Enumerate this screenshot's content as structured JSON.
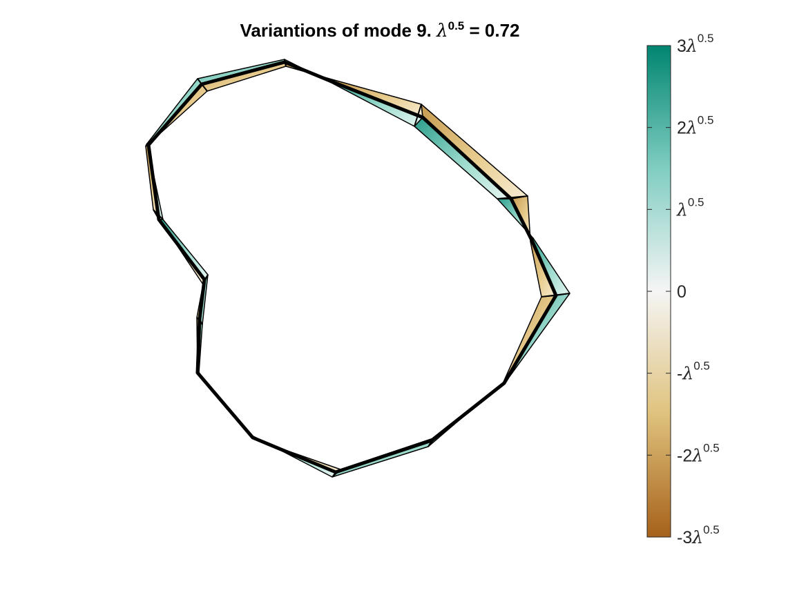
{
  "chart_data": {
    "type": "shape-variation",
    "title": {
      "prefix": "Variantions of mode 9. ",
      "lambda_symbol": "λ",
      "exponent": "0.5",
      "suffix": " = 0.72"
    },
    "mode": 9,
    "sqrt_lambda": 0.72,
    "colorbar": {
      "min": -3,
      "max": 3,
      "colors": {
        "negative": "#A6611A",
        "mid": "#F5F5F5",
        "positive": "#018571",
        "neg_light": "#DFC27D",
        "pos_light": "#80CDC1"
      },
      "ticks": [
        {
          "value": 3,
          "coef": "3",
          "has_lambda": true
        },
        {
          "value": 2,
          "coef": "2",
          "has_lambda": true
        },
        {
          "value": 1,
          "coef": "",
          "has_lambda": true
        },
        {
          "value": 0,
          "coef": "0",
          "has_lambda": false
        },
        {
          "value": -1,
          "coef": "-",
          "has_lambda": true
        },
        {
          "value": -2,
          "coef": "-2",
          "has_lambda": true
        },
        {
          "value": -3,
          "coef": "-3",
          "has_lambda": true
        }
      ],
      "lambda_symbol": "λ",
      "exponent": "0.5"
    },
    "mean_shape": [
      [
        412,
        90
      ],
      [
        292,
        122
      ],
      [
        215,
        210
      ],
      [
        230,
        318
      ],
      [
        296,
        405
      ],
      [
        289,
        462
      ],
      [
        286,
        540
      ],
      [
        366,
        634
      ],
      [
        486,
        684
      ],
      [
        625,
        638
      ],
      [
        730,
        555
      ],
      [
        805,
        428
      ],
      [
        770,
        348
      ],
      [
        740,
        288
      ],
      [
        612,
        170
      ],
      [
        480,
        118
      ]
    ],
    "plus_shape": [
      [
        412,
        86
      ],
      [
        286,
        114
      ],
      [
        213,
        208
      ],
      [
        236,
        318
      ],
      [
        301,
        398
      ],
      [
        293,
        470
      ],
      [
        288,
        540
      ],
      [
        363,
        630
      ],
      [
        481,
        691
      ],
      [
        620,
        647
      ],
      [
        736,
        548
      ],
      [
        825,
        425
      ],
      [
        772,
        345
      ],
      [
        720,
        288
      ],
      [
        600,
        183
      ],
      [
        478,
        119
      ]
    ],
    "minus_shape": [
      [
        414,
        96
      ],
      [
        300,
        132
      ],
      [
        211,
        212
      ],
      [
        222,
        304
      ],
      [
        294,
        412
      ],
      [
        285,
        460
      ],
      [
        286,
        540
      ],
      [
        370,
        637
      ],
      [
        493,
        680
      ],
      [
        630,
        634
      ],
      [
        726,
        560
      ],
      [
        784,
        430
      ],
      [
        768,
        350
      ],
      [
        764,
        284
      ],
      [
        610,
        151
      ],
      [
        484,
        116
      ]
    ]
  }
}
